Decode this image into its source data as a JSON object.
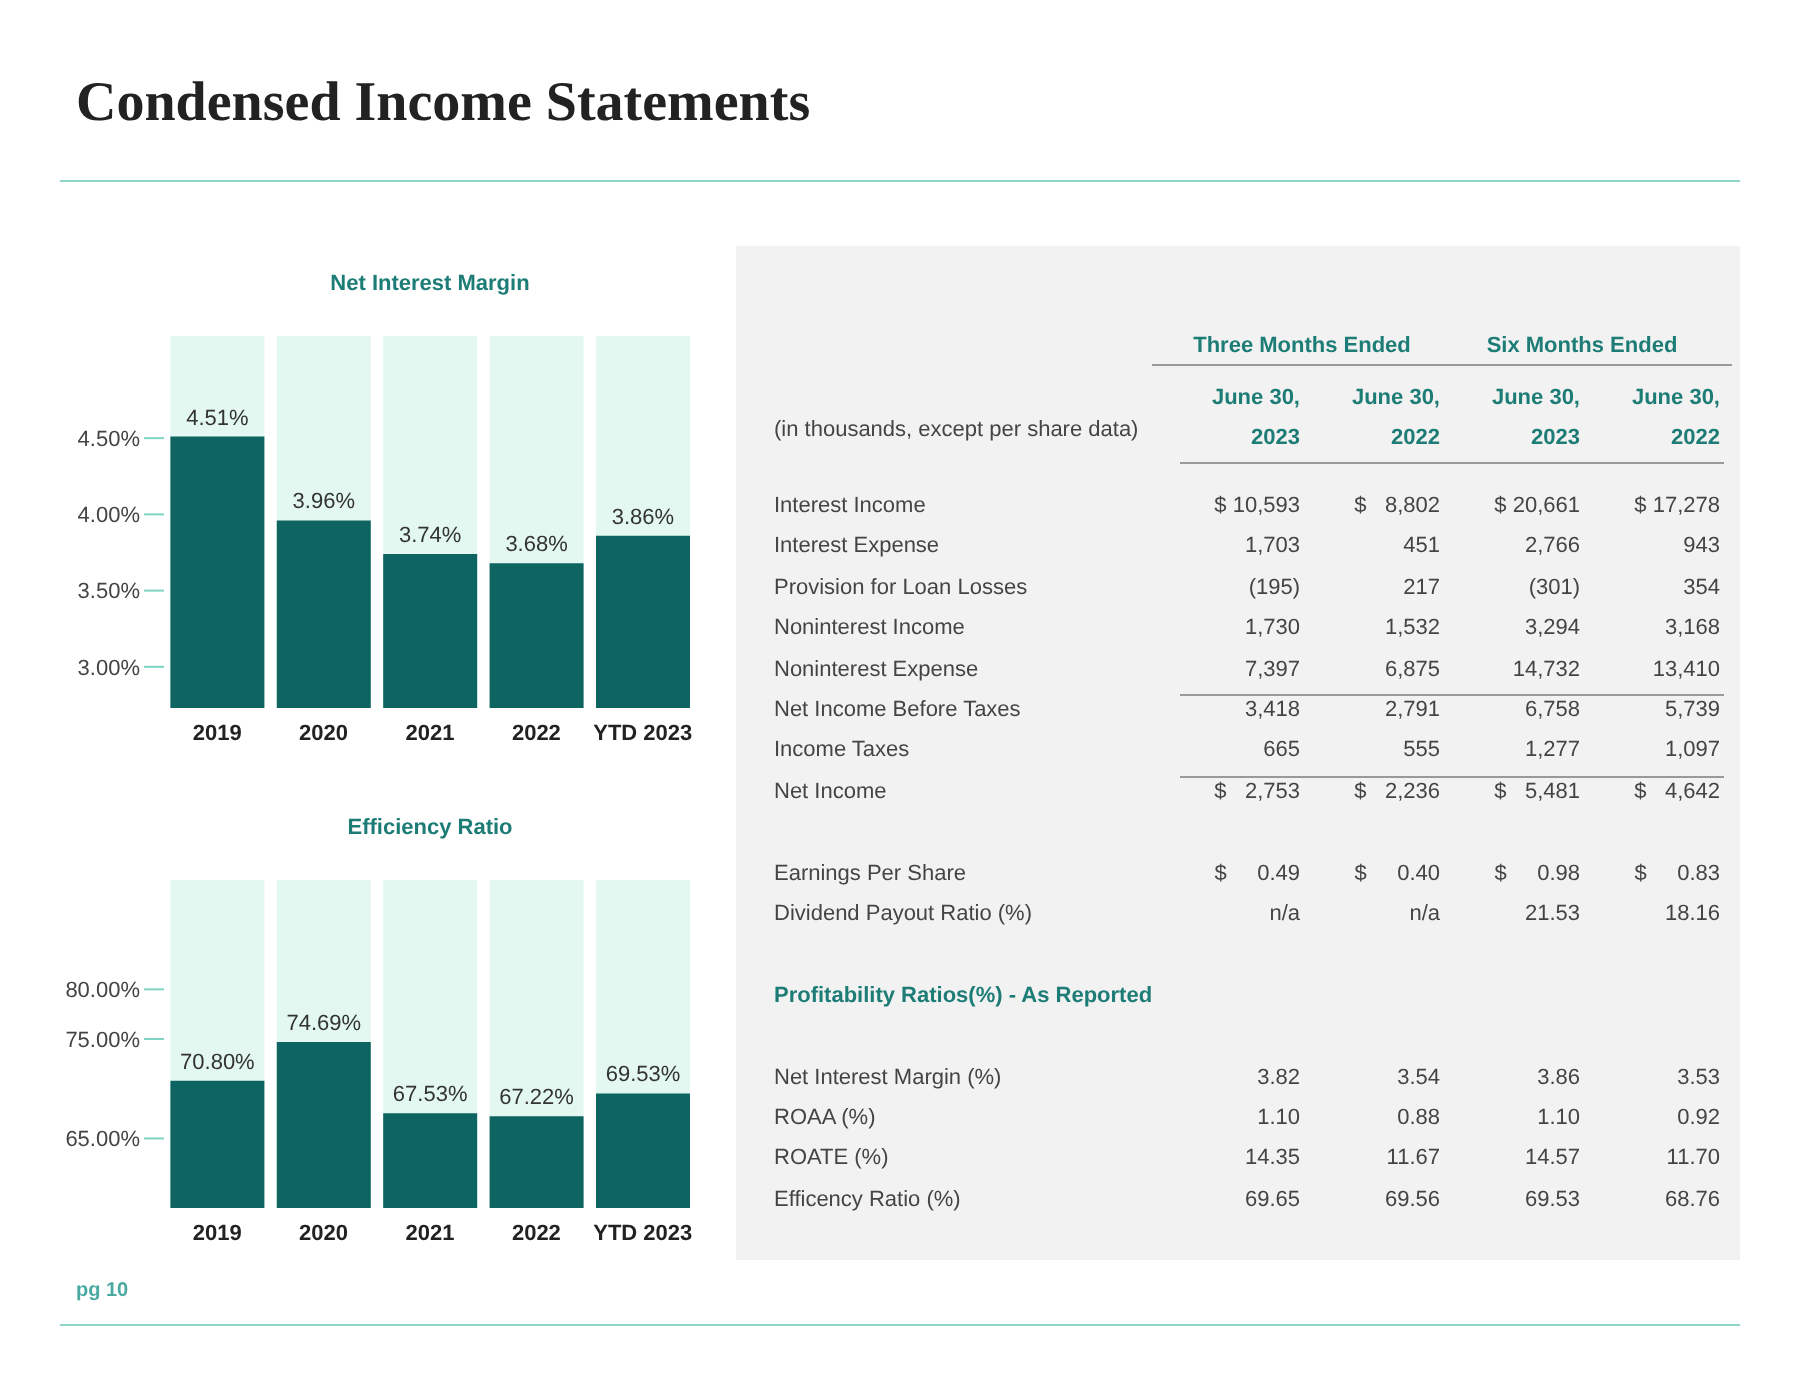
{
  "chart_data": [
    {
      "type": "other",
      "title": "Condensed Income Statements",
      "annotations": [
        "pg 10"
      ]
    },
    {
      "type": "bar",
      "title": "Net Interest Margin",
      "categories": [
        "2019",
        "2020",
        "2021",
        "2022",
        "YTD 2023"
      ],
      "values": [
        4.51,
        3.96,
        3.74,
        3.68,
        3.86
      ],
      "value_labels": [
        "4.51%",
        "3.96%",
        "3.74%",
        "3.68%",
        "3.86%"
      ],
      "color": "#0e6461",
      "ylim": [
        2.73,
        5.17
      ],
      "yticks": [
        {
          "value": 3,
          "label": "3.00%"
        },
        {
          "value": 3.5,
          "label": "3.50%"
        },
        {
          "value": 4,
          "label": "4.00%"
        },
        {
          "value": 4.5,
          "label": "4.50%"
        }
      ],
      "grid": false,
      "legend": false
    },
    {
      "type": "bar",
      "title": "Efficiency Ratio",
      "categories": [
        "2019",
        "2020",
        "2021",
        "2022",
        "YTD 2023"
      ],
      "values": [
        70.8,
        74.69,
        67.53,
        67.22,
        69.53
      ],
      "value_labels": [
        "70.80%",
        "74.69%",
        "67.53%",
        "67.22%",
        "69.53%"
      ],
      "color": "#0e6461",
      "ylim": [
        58,
        91
      ],
      "yticks": [
        {
          "value": 65,
          "label": "65.00%"
        },
        {
          "value": 75,
          "label": "75.00%"
        },
        {
          "value": 80,
          "label": "80.00%"
        }
      ],
      "grid": false,
      "legend": false
    },
    {
      "type": "other",
      "annotations": [
        "Three Months Ended",
        "Six Months Ended",
        "(in thousands, except per share data)"
      ],
      "categories": [
        "Interest Income",
        "Interest Expense",
        "Provision for Loan Losses",
        "Noninterest Income",
        "Noninterest Expense",
        "Net Income Before Taxes",
        "Income Taxes",
        "Net Income",
        null,
        "Earnings Per Share",
        "Dividend Payout Ratio (%)",
        null,
        "Profitability Ratios(%) - As Reported",
        null,
        "Net Interest Margin (%)",
        "ROAA (%)",
        "ROATE (%)",
        "Efficency Ratio (%)"
      ],
      "series": [
        {
          "name": "June 30, 2023",
          "values": [
            10593,
            1703,
            -195,
            1730,
            7397,
            3418,
            665,
            2753,
            null,
            0.49,
            null,
            null,
            null,
            null,
            3.82,
            1.1,
            14.35,
            69.65
          ],
          "value_labels": [
            "$ 10,593",
            "1,703",
            "(195)",
            "1,730",
            "7,397",
            "3,418",
            "665",
            "$   2,753",
            null,
            "$     0.49",
            "n/a",
            null,
            null,
            null,
            "3.82",
            "1.10",
            "14.35",
            "69.65"
          ]
        },
        {
          "name": "June 30, 2022",
          "values": [
            8802,
            451,
            217,
            1532,
            6875,
            2791,
            555,
            2236,
            null,
            0.4,
            null,
            null,
            null,
            null,
            3.54,
            0.88,
            11.67,
            69.56
          ],
          "value_labels": [
            "$   8,802",
            "451",
            "217",
            "1,532",
            "6,875",
            "2,791",
            "555",
            "$   2,236",
            null,
            "$     0.40",
            "n/a",
            null,
            null,
            null,
            "3.54",
            "0.88",
            "11.67",
            "69.56"
          ]
        },
        {
          "name": "June 30, 2023",
          "values": [
            20661,
            2766,
            -301,
            3294,
            14732,
            6758,
            1277,
            5481,
            null,
            0.98,
            21.53,
            null,
            null,
            null,
            3.86,
            1.1,
            14.57,
            69.53
          ],
          "value_labels": [
            "$ 20,661",
            "2,766",
            "(301)",
            "3,294",
            "14,732",
            "6,758",
            "1,277",
            "$   5,481",
            null,
            "$     0.98",
            "21.53",
            null,
            null,
            null,
            "3.86",
            "1.10",
            "14.57",
            "69.53"
          ]
        },
        {
          "name": "June 30, 2022",
          "values": [
            17278,
            943,
            354,
            3168,
            13410,
            5739,
            1097,
            4642,
            null,
            0.83,
            18.16,
            null,
            null,
            null,
            3.53,
            0.92,
            11.7,
            68.76
          ],
          "value_labels": [
            "$ 17,278",
            "943",
            "354",
            "3,168",
            "13,410",
            "5,739",
            "1,097",
            "$   4,642",
            null,
            "$     0.83",
            "18.16",
            null,
            null,
            null,
            "3.53",
            "0.92",
            "11.70",
            "68.76"
          ]
        }
      ]
    }
  ]
}
